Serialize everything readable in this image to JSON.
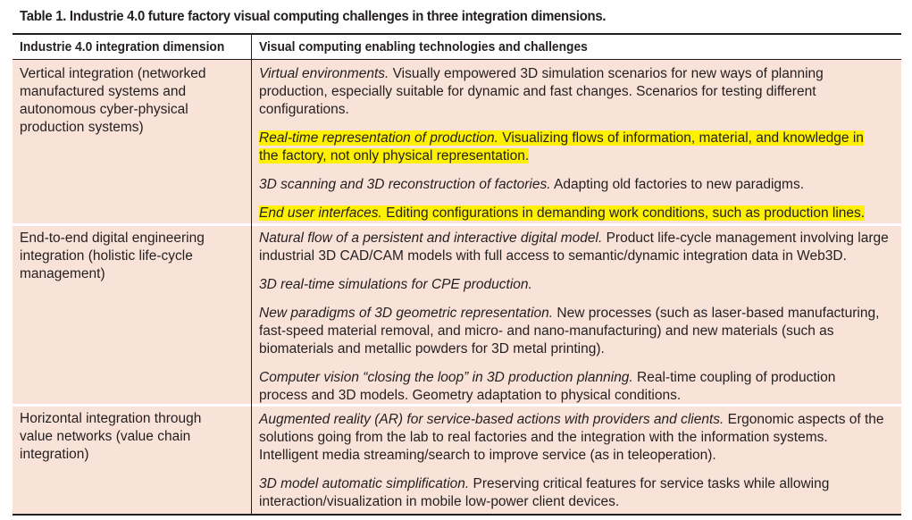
{
  "caption": "Table 1. Industrie 4.0 future factory visual computing challenges in three integration dimensions.",
  "headers": {
    "col1": "Industrie 4.0 integration dimension",
    "col2": "Visual computing enabling technologies and challenges"
  },
  "rows": [
    {
      "dimension": [
        "Vertical integration (networked",
        "manufactured systems and",
        "autonomous cyber-physical",
        "production systems)"
      ],
      "items": [
        {
          "highlighted": false,
          "lines": [
            [
              {
                "t": "Virtual environments.",
                "i": true
              },
              {
                "t": " Visually empowered 3D simulation scenarios for new ways of planning"
              }
            ],
            [
              {
                "t": "production, especially suitable for dynamic and fast changes. Scenarios for testing different"
              }
            ],
            [
              {
                "t": "configurations."
              }
            ]
          ]
        },
        {
          "highlighted": true,
          "lines": [
            [
              {
                "t": "Real-time representation of production.",
                "i": true
              },
              {
                "t": " Visualizing flows of information, material, and knowledge in"
              }
            ],
            [
              {
                "t": "the factory, not only physical representation."
              }
            ]
          ]
        },
        {
          "highlighted": false,
          "lines": [
            [
              {
                "t": "3D scanning and 3D reconstruction of factories.",
                "i": true
              },
              {
                "t": " Adapting old factories to new paradigms."
              }
            ]
          ]
        },
        {
          "highlighted": true,
          "lines": [
            [
              {
                "t": "End user interfaces.",
                "i": true
              },
              {
                "t": " Editing configurations in demanding work conditions, such as production lines."
              }
            ]
          ]
        }
      ]
    },
    {
      "dimension": [
        "End-to-end digital engineering",
        "integration (holistic life-cycle",
        "management)"
      ],
      "items": [
        {
          "highlighted": false,
          "lines": [
            [
              {
                "t": "Natural flow of a persistent and interactive digital model.",
                "i": true
              },
              {
                "t": " Product life-cycle management involving large"
              }
            ],
            [
              {
                "t": "industrial 3D CAD/CAM models with full access to semantic/dynamic integration data in Web3D."
              }
            ]
          ]
        },
        {
          "highlighted": false,
          "lines": [
            [
              {
                "t": "3D real-time simulations for CPE production.",
                "i": true
              }
            ]
          ]
        },
        {
          "highlighted": false,
          "lines": [
            [
              {
                "t": "New paradigms of 3D geometric representation.",
                "i": true
              },
              {
                "t": " New processes (such as laser-based manufacturing,"
              }
            ],
            [
              {
                "t": "fast-speed material removal, and micro- and nano-manufacturing) and new materials (such as"
              }
            ],
            [
              {
                "t": "biomaterials and metallic powders for 3D metal printing)."
              }
            ]
          ]
        },
        {
          "highlighted": false,
          "lines": [
            [
              {
                "t": "Computer vision “closing the loop” in 3D production planning.",
                "i": true
              },
              {
                "t": " Real-time coupling of production"
              }
            ],
            [
              {
                "t": "process and 3D models. Geometry adaptation to physical conditions."
              }
            ]
          ]
        }
      ]
    },
    {
      "dimension": [
        "Horizontal integration through",
        "value networks (value chain",
        "integration)"
      ],
      "items": [
        {
          "highlighted": false,
          "lines": [
            [
              {
                "t": "Augmented reality (AR) for service-based actions with providers and clients.",
                "i": true
              },
              {
                "t": " Ergonomic aspects of the"
              }
            ],
            [
              {
                "t": "solutions going from the lab to real factories and the integration with the information systems."
              }
            ],
            [
              {
                "t": "Intelligent media streaming/search to improve service (as in teleoperation)."
              }
            ]
          ]
        },
        {
          "highlighted": false,
          "lines": [
            [
              {
                "t": "3D model automatic simplification.",
                "i": true
              },
              {
                "t": " Preserving critical features for service tasks while allowing"
              }
            ],
            [
              {
                "t": "interaction/visualization in mobile low-power client devices."
              }
            ]
          ]
        }
      ]
    }
  ]
}
